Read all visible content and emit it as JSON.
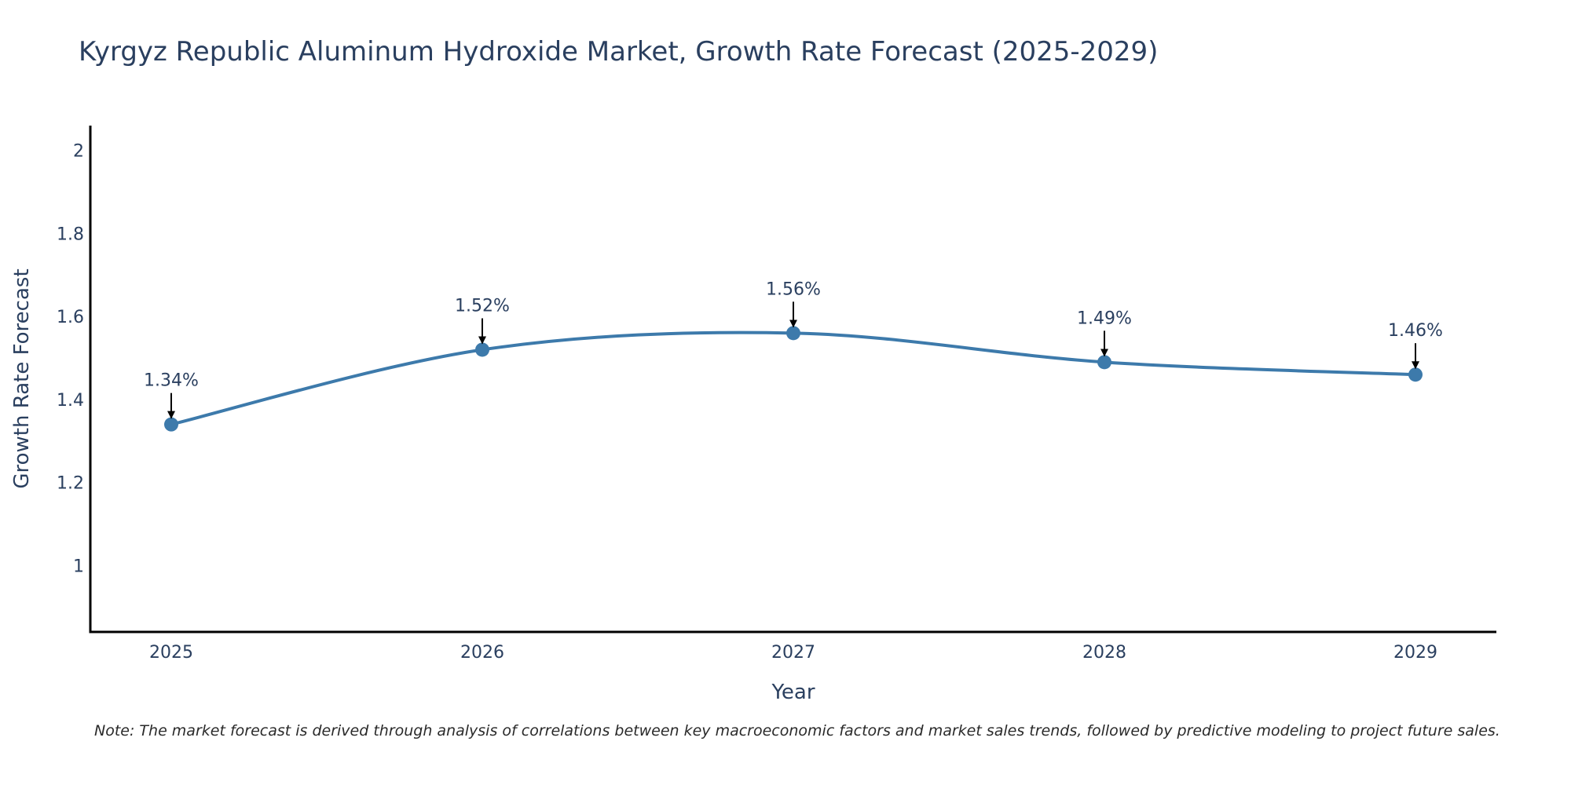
{
  "chart_data": {
    "type": "line",
    "title": "Kyrgyz Republic Aluminum Hydroxide Market, Growth Rate Forecast (2025-2029)",
    "xlabel": "Year",
    "ylabel": "Growth Rate Forecast",
    "categories": [
      "2025",
      "2026",
      "2027",
      "2028",
      "2029"
    ],
    "series": [
      {
        "name": "Growth Rate Forecast",
        "values": [
          1.34,
          1.52,
          1.56,
          1.49,
          1.46
        ],
        "labels": [
          "1.34%",
          "1.52%",
          "1.56%",
          "1.49%",
          "1.46%"
        ],
        "color": "#3d7aab"
      }
    ],
    "ylim": [
      0.84,
      2.06
    ],
    "yticks": [
      1,
      1.2,
      1.4,
      1.6,
      1.8,
      2
    ],
    "ytick_labels": [
      "1",
      "1.2",
      "1.4",
      "1.6",
      "1.8",
      "2"
    ],
    "grid": false,
    "line_shape": "spline",
    "note": "Note: The market forecast is derived through analysis of correlations between key macroeconomic factors and market sales trends, followed by predictive modeling to project future sales."
  }
}
